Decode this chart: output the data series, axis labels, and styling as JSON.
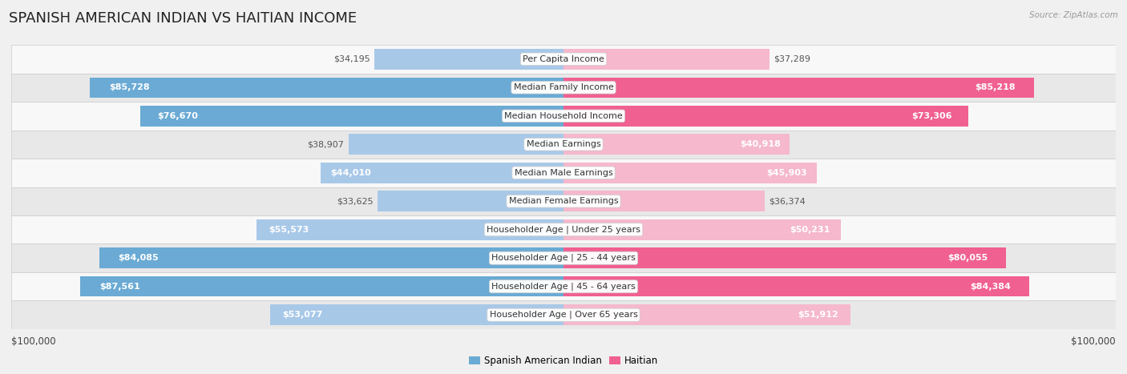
{
  "title": "SPANISH AMERICAN INDIAN VS HAITIAN INCOME",
  "source": "Source: ZipAtlas.com",
  "categories": [
    "Per Capita Income",
    "Median Family Income",
    "Median Household Income",
    "Median Earnings",
    "Median Male Earnings",
    "Median Female Earnings",
    "Householder Age | Under 25 years",
    "Householder Age | 25 - 44 years",
    "Householder Age | 45 - 64 years",
    "Householder Age | Over 65 years"
  ],
  "left_values": [
    34195,
    85728,
    76670,
    38907,
    44010,
    33625,
    55573,
    84085,
    87561,
    53077
  ],
  "right_values": [
    37289,
    85218,
    73306,
    40918,
    45903,
    36374,
    50231,
    80055,
    84384,
    51912
  ],
  "left_labels": [
    "$34,195",
    "$85,728",
    "$76,670",
    "$38,907",
    "$44,010",
    "$33,625",
    "$55,573",
    "$84,085",
    "$87,561",
    "$53,077"
  ],
  "right_labels": [
    "$37,289",
    "$85,218",
    "$73,306",
    "$40,918",
    "$45,903",
    "$36,374",
    "$50,231",
    "$80,055",
    "$84,384",
    "$51,912"
  ],
  "max_value": 100000,
  "left_color_light": "#a8c8e8",
  "left_color_dark": "#6aaad4",
  "right_color_light": "#f5b8cc",
  "right_color_dark": "#f06090",
  "label_color_inside": "#ffffff",
  "label_color_outside": "#555555",
  "bg_color": "#f0f0f0",
  "row_bg_even": "#f8f8f8",
  "row_bg_odd": "#e8e8e8",
  "row_border": "#cccccc",
  "legend_left": "Spanish American Indian",
  "legend_right": "Haitian",
  "title_fontsize": 13,
  "label_fontsize": 8,
  "category_fontsize": 8,
  "inside_threshold": 40000,
  "dark_threshold": 70000
}
